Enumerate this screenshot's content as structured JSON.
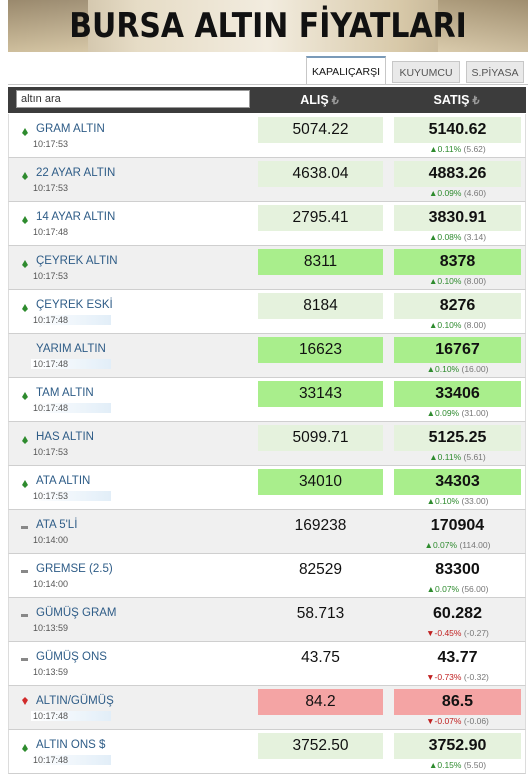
{
  "banner": {
    "title": "BURSA ALTIN FİYATLARI"
  },
  "tabs": [
    {
      "label": "KAPALIÇARŞI",
      "active": true
    },
    {
      "label": "KUYUMCU",
      "active": false
    },
    {
      "label": "S.PİYASA",
      "active": false
    }
  ],
  "table": {
    "search_placeholder": "altın ara",
    "col_buy": "ALIŞ",
    "col_sell": "SATIŞ",
    "currency_symbol": "₺",
    "rows": [
      {
        "name": "GRAM ALTIN",
        "time": "10:17:53",
        "trend": "up",
        "buy": "5074.22",
        "sell": "5140.62",
        "buy_style": "lg",
        "sell_style": "lg",
        "change_dir": "up",
        "change_pct": "0.11%",
        "change_amt": "(5.62)",
        "time_hl": false
      },
      {
        "name": "22 AYAR ALTIN",
        "time": "10:17:53",
        "trend": "up",
        "buy": "4638.04",
        "sell": "4883.26",
        "buy_style": "lg",
        "sell_style": "lg",
        "change_dir": "up",
        "change_pct": "0.09%",
        "change_amt": "(4.60)",
        "time_hl": false
      },
      {
        "name": "14 AYAR ALTIN",
        "time": "10:17:48",
        "trend": "up",
        "buy": "2795.41",
        "sell": "3830.91",
        "buy_style": "lg",
        "sell_style": "lg",
        "change_dir": "up",
        "change_pct": "0.08%",
        "change_amt": "(3.14)",
        "time_hl": false
      },
      {
        "name": "ÇEYREK ALTIN",
        "time": "10:17:53",
        "trend": "up",
        "buy": "8311",
        "sell": "8378",
        "buy_style": "gr",
        "sell_style": "gr",
        "change_dir": "up",
        "change_pct": "0.10%",
        "change_amt": "(8.00)",
        "time_hl": false
      },
      {
        "name": "ÇEYREK ESKİ",
        "time": "10:17:48",
        "trend": "up",
        "buy": "8184",
        "sell": "8276",
        "buy_style": "lg",
        "sell_style": "lg",
        "change_dir": "up",
        "change_pct": "0.10%",
        "change_amt": "(8.00)",
        "time_hl": true
      },
      {
        "name": "YARIM ALTIN",
        "time": "10:17:48",
        "trend": "none",
        "buy": "16623",
        "sell": "16767",
        "buy_style": "gr",
        "sell_style": "gr",
        "change_dir": "up",
        "change_pct": "0.10%",
        "change_amt": "(16.00)",
        "time_hl": true
      },
      {
        "name": "TAM ALTIN",
        "time": "10:17:48",
        "trend": "up",
        "buy": "33143",
        "sell": "33406",
        "buy_style": "gr",
        "sell_style": "gr",
        "change_dir": "up",
        "change_pct": "0.09%",
        "change_amt": "(31.00)",
        "time_hl": true
      },
      {
        "name": "HAS ALTIN",
        "time": "10:17:53",
        "trend": "up",
        "buy": "5099.71",
        "sell": "5125.25",
        "buy_style": "lg",
        "sell_style": "lg",
        "change_dir": "up",
        "change_pct": "0.11%",
        "change_amt": "(5.61)",
        "time_hl": false
      },
      {
        "name": "ATA ALTIN",
        "time": "10:17:53",
        "trend": "up",
        "buy": "34010",
        "sell": "34303",
        "buy_style": "gr",
        "sell_style": "gr",
        "change_dir": "up",
        "change_pct": "0.10%",
        "change_amt": "(33.00)",
        "time_hl": true
      },
      {
        "name": "ATA 5'Lİ",
        "time": "10:14:00",
        "trend": "flat",
        "buy": "169238",
        "sell": "170904",
        "buy_style": "pl",
        "sell_style": "pl",
        "change_dir": "up",
        "change_pct": "0.07%",
        "change_amt": "(114.00)",
        "time_hl": false
      },
      {
        "name": "GREMSE (2.5)",
        "time": "10:14:00",
        "trend": "flat",
        "buy": "82529",
        "sell": "83300",
        "buy_style": "pl",
        "sell_style": "pl",
        "change_dir": "up",
        "change_pct": "0.07%",
        "change_amt": "(56.00)",
        "time_hl": false
      },
      {
        "name": "GÜMÜŞ GRAM",
        "time": "10:13:59",
        "trend": "flat",
        "buy": "58.713",
        "sell": "60.282",
        "buy_style": "pl",
        "sell_style": "pl",
        "change_dir": "down",
        "change_pct": "-0.45%",
        "change_amt": "(-0.27)",
        "time_hl": false
      },
      {
        "name": "GÜMÜŞ ONS",
        "time": "10:13:59",
        "trend": "flat",
        "buy": "43.75",
        "sell": "43.77",
        "buy_style": "pl",
        "sell_style": "pl",
        "change_dir": "down",
        "change_pct": "-0.73%",
        "change_amt": "(-0.32)",
        "time_hl": false
      },
      {
        "name": "ALTIN/GÜMÜŞ",
        "time": "10:17:48",
        "trend": "down",
        "buy": "84.2",
        "sell": "86.5",
        "buy_style": "rd",
        "sell_style": "rd",
        "change_dir": "down",
        "change_pct": "-0.07%",
        "change_amt": "(-0.06)",
        "time_hl": true
      },
      {
        "name": "ALTIN ONS $",
        "time": "10:17:48",
        "trend": "up",
        "buy": "3752.50",
        "sell": "3752.90",
        "buy_style": "lg",
        "sell_style": "lg",
        "change_dir": "up",
        "change_pct": "0.15%",
        "change_amt": "(5.50)",
        "time_hl": true
      }
    ]
  },
  "colors": {
    "gain_green": "#a9ee8c",
    "light_green": "#e5f2dd",
    "loss_red": "#f4a4a4",
    "header_dark": "#3c3c3c",
    "name_blue": "#2e5c87"
  },
  "icons": {
    "up": "diamond-up-icon",
    "flat": "dash-icon",
    "down": "diamond-down-icon"
  }
}
